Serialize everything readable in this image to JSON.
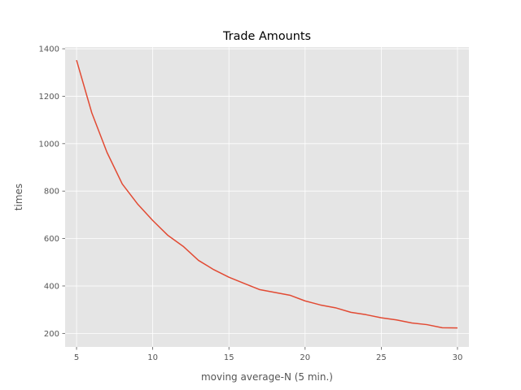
{
  "chart_data": {
    "type": "line",
    "title": "Trade Amounts",
    "xlabel": "moving average-N  (5 min.)",
    "ylabel": "times",
    "xlim": [
      4.25,
      30.75
    ],
    "ylim": [
      143,
      1407
    ],
    "x_ticks": [
      5,
      10,
      15,
      20,
      25,
      30
    ],
    "y_ticks": [
      200,
      400,
      600,
      800,
      1000,
      1200,
      1400
    ],
    "grid": true,
    "style": "ggplot",
    "colors": {
      "line": "#E24A33",
      "background": "#E5E5E5",
      "grid": "#FFFFFF"
    },
    "series": [
      {
        "x": [
          5,
          6,
          7,
          8,
          9,
          10,
          11,
          12,
          13,
          14,
          15,
          16,
          17,
          18,
          19,
          20,
          21,
          22,
          23,
          24,
          25,
          26,
          27,
          28,
          29,
          30
        ],
        "values": [
          1352,
          1130,
          963,
          830,
          746,
          676,
          613,
          567,
          508,
          469,
          437,
          411,
          385,
          373,
          361,
          337,
          320,
          308,
          289,
          279,
          266,
          257,
          244,
          237,
          224,
          223
        ]
      }
    ]
  }
}
